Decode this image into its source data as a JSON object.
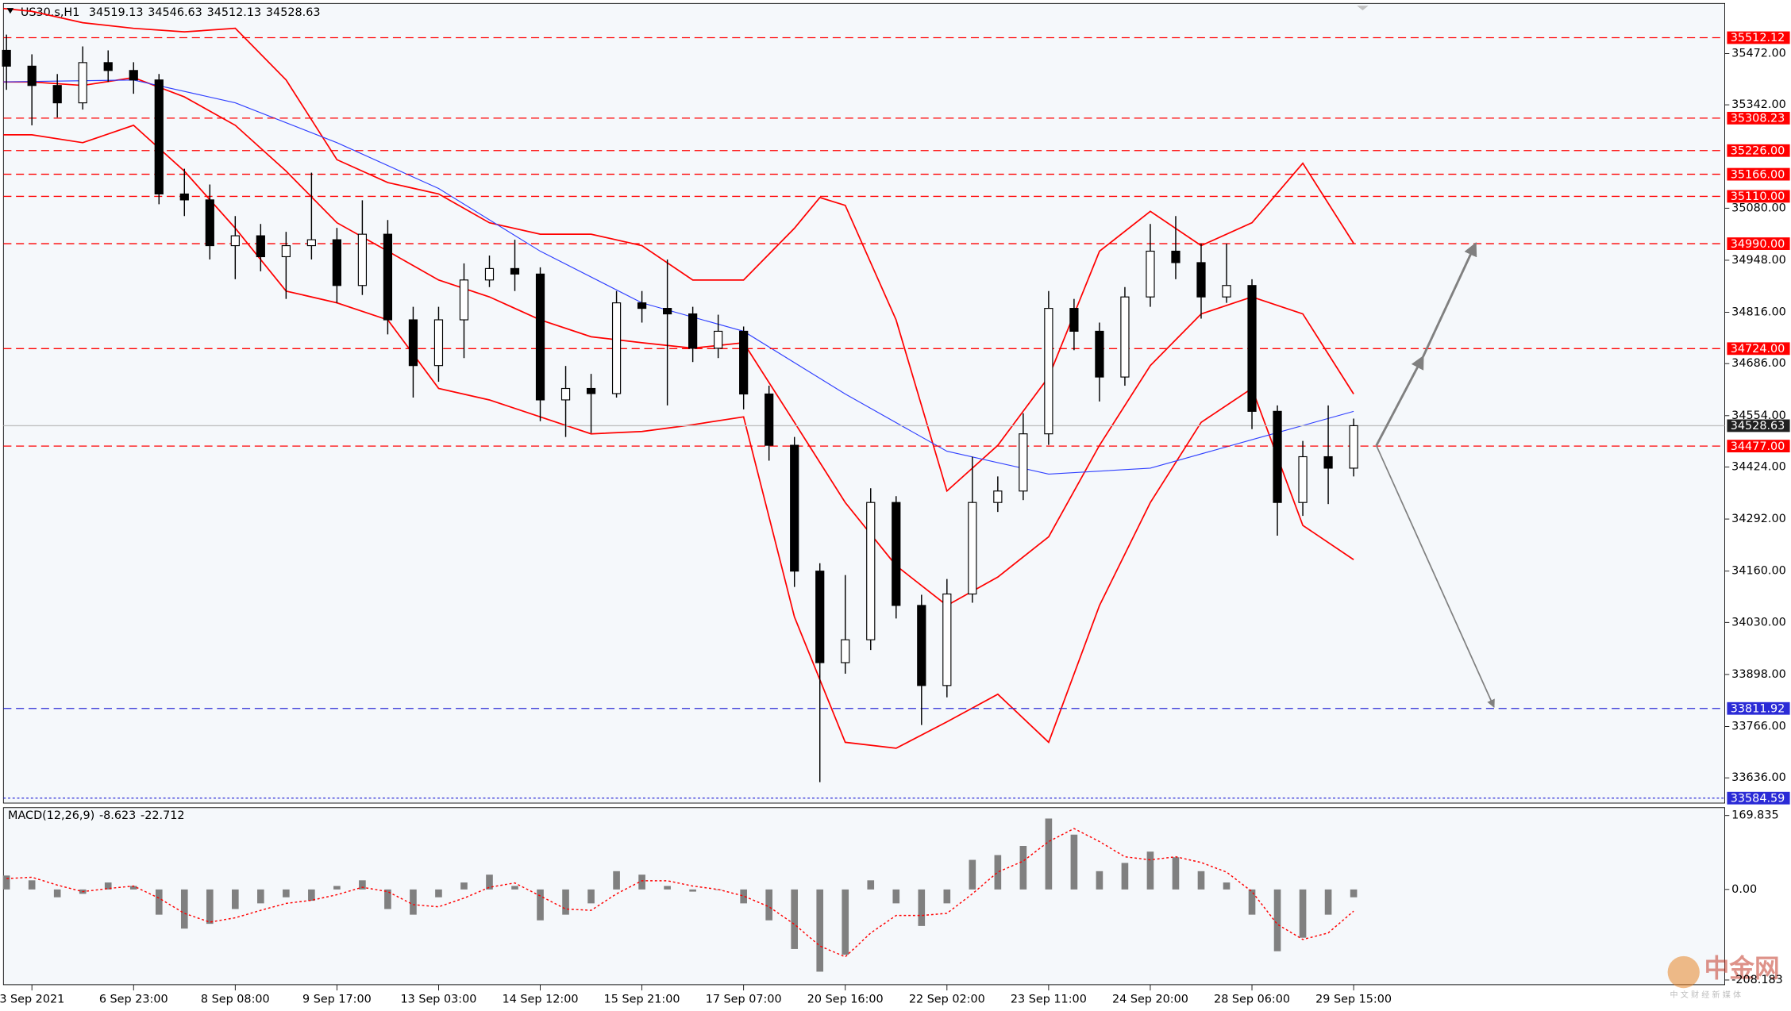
{
  "chart_data": [
    {
      "type": "candlestick",
      "title": "US30.s,H1",
      "quote": [
        34519.13,
        34546.63,
        34512.13,
        34528.63
      ],
      "xlim": [
        -0.28,
        16.65
      ],
      "xticks": [
        {
          "value": 0,
          "label": "3 Sep 2021"
        },
        {
          "value": 1,
          "label": "6 Sep 23:00"
        },
        {
          "value": 2,
          "label": "8 Sep 08:00"
        },
        {
          "value": 3,
          "label": "9 Sep 17:00"
        },
        {
          "value": 4,
          "label": "13 Sep 03:00"
        },
        {
          "value": 5,
          "label": "14 Sep 12:00"
        },
        {
          "value": 6,
          "label": "15 Sep 21:00"
        },
        {
          "value": 7,
          "label": "17 Sep 07:00"
        },
        {
          "value": 8,
          "label": "20 Sep 16:00"
        },
        {
          "value": 9,
          "label": "22 Sep 02:00"
        },
        {
          "value": 10,
          "label": "23 Sep 11:00"
        },
        {
          "value": 11,
          "label": "24 Sep 20:00"
        },
        {
          "value": 12,
          "label": "28 Sep 06:00"
        },
        {
          "value": 13,
          "label": "29 Sep 15:00"
        }
      ],
      "ylim": [
        33572,
        35599
      ],
      "yticks": [
        {
          "value": 35472,
          "label": "35472.00"
        },
        {
          "value": 35342,
          "label": "35342.00"
        },
        {
          "value": 35080,
          "label": "35080.00"
        },
        {
          "value": 34948,
          "label": "34948.00"
        },
        {
          "value": 34816,
          "label": "34816.00"
        },
        {
          "value": 34686,
          "label": "34686.00"
        },
        {
          "value": 34554,
          "label": "34554.00"
        },
        {
          "value": 34424,
          "label": "34424.00"
        },
        {
          "value": 34292,
          "label": "34292.00"
        },
        {
          "value": 34160,
          "label": "34160.00"
        },
        {
          "value": 34030,
          "label": "34030.00"
        },
        {
          "value": 33898,
          "label": "33898.00"
        },
        {
          "value": 33766,
          "label": "33766.00"
        },
        {
          "value": 33636,
          "label": "33636.00"
        }
      ],
      "grid": false,
      "x": [
        -0.25,
        0,
        0.25,
        0.5,
        0.75,
        1,
        1.25,
        1.5,
        1.75,
        2,
        2.25,
        2.5,
        2.75,
        3,
        3.25,
        3.5,
        3.75,
        4,
        4.25,
        4.5,
        4.75,
        5,
        5.25,
        5.5,
        5.75,
        6,
        6.25,
        6.5,
        6.75,
        7,
        7.25,
        7.5,
        7.75,
        8,
        8.25,
        8.5,
        8.75,
        9,
        9.25,
        9.5,
        9.75,
        10,
        10.25,
        10.5,
        10.75,
        11,
        11.25,
        11.5,
        11.75,
        12,
        12.25,
        12.5,
        12.75,
        13
      ],
      "open": [
        35480,
        35440,
        35391,
        35347,
        35449,
        35429,
        35405,
        35116,
        35101,
        34985,
        35010,
        34957,
        34985,
        35000,
        34884,
        35014,
        34797,
        34681,
        34797,
        34898,
        34927,
        34913,
        34594,
        34623,
        34610,
        34840,
        34826,
        34812,
        34725,
        34768,
        34609,
        34479,
        34160,
        33928,
        33986,
        34334,
        34073,
        33870,
        34102,
        34334,
        34363,
        34508,
        34826,
        34768,
        34652,
        34855,
        34971,
        34942,
        34855,
        34884,
        34565,
        34334,
        34450,
        34421
      ],
      "high": [
        35520,
        35470,
        35420,
        35490,
        35480,
        35450,
        35420,
        35180,
        35140,
        35060,
        35040,
        35020,
        35170,
        35030,
        35100,
        35050,
        34830,
        34830,
        34940,
        34960,
        35000,
        34930,
        34680,
        34660,
        34870,
        34870,
        34950,
        34830,
        34810,
        34780,
        34630,
        34500,
        34180,
        34150,
        34370,
        34350,
        34100,
        34140,
        34450,
        34400,
        34560,
        34870,
        34850,
        34790,
        34880,
        35040,
        35060,
        34990,
        34990,
        34900,
        34580,
        34490,
        34580,
        34546.63
      ],
      "low": [
        35380,
        35290,
        35310,
        35330,
        35400,
        35370,
        35090,
        35060,
        34950,
        34900,
        34920,
        34850,
        34950,
        34840,
        34860,
        34760,
        34600,
        34640,
        34700,
        34880,
        34870,
        34540,
        34500,
        34510,
        34600,
        34790,
        34580,
        34690,
        34700,
        34570,
        34440,
        34120,
        33625,
        33900,
        33960,
        34040,
        33770,
        33840,
        34080,
        34310,
        34340,
        34480,
        34720,
        34590,
        34630,
        34830,
        34900,
        34800,
        34840,
        34520,
        34250,
        34300,
        34330,
        34400
      ],
      "close": [
        35440,
        35391,
        35347,
        35449,
        35429,
        35405,
        35116,
        35101,
        34985,
        35010,
        34957,
        34985,
        35000,
        34884,
        35014,
        34797,
        34681,
        34797,
        34898,
        34927,
        34913,
        34594,
        34623,
        34610,
        34840,
        34826,
        34812,
        34725,
        34768,
        34609,
        34479,
        34160,
        33928,
        33986,
        34334,
        34073,
        33870,
        34102,
        34334,
        34363,
        34508,
        34826,
        34768,
        34652,
        34855,
        34971,
        34942,
        34855,
        34884,
        34565,
        34334,
        34450,
        34421,
        34528.63
      ],
      "up_color": "#ffffff",
      "down_color": "#000000",
      "overlays": [
        {
          "color": "#ff0000",
          "x": [
            -0.28,
            0,
            0.5,
            1,
            1.5,
            2,
            2.5,
            3,
            3.5,
            4,
            4.5,
            5,
            5.5,
            6,
            6.5,
            7,
            7.5,
            7.75,
            8,
            8.5,
            9,
            9.5,
            10,
            10.5,
            11,
            11.5,
            12,
            12.5,
            13
          ],
          "values": [
            35586,
            35579,
            35550,
            35536,
            35527,
            35536,
            35405,
            35203,
            35145,
            35116,
            35043,
            35014,
            35014,
            34985,
            34898,
            34898,
            35029,
            35107,
            35087,
            34797,
            34363,
            34479,
            34652,
            34971,
            35072,
            34985,
            35043,
            35194,
            34991
          ]
        },
        {
          "color": "#ff0000",
          "x": [
            -0.28,
            0,
            0.5,
            1,
            1.5,
            2,
            2.5,
            3,
            3.5,
            4,
            4.5,
            5,
            5.5,
            6,
            6.5,
            7,
            7.5,
            8,
            8.5,
            9,
            9.5,
            10,
            10.5,
            11,
            11.5,
            12,
            12.5,
            13
          ],
          "values": [
            35400,
            35400,
            35391,
            35411,
            35362,
            35290,
            35174,
            35043,
            34971,
            34898,
            34855,
            34797,
            34754,
            34739,
            34725,
            34739,
            34537,
            34334,
            34174,
            34073,
            34145,
            34247,
            34479,
            34681,
            34812,
            34855,
            34812,
            34609
          ]
        },
        {
          "color": "#ff0000",
          "x": [
            -0.28,
            0,
            0.5,
            1,
            1.5,
            2,
            2.5,
            3,
            3.5,
            4,
            4.5,
            5,
            5.5,
            6,
            6.5,
            7,
            7.5,
            8,
            8.5,
            9,
            9.5,
            10,
            10.5,
            11,
            11.5,
            12,
            12.5,
            13
          ],
          "values": [
            35266,
            35266,
            35246,
            35290,
            35174,
            35029,
            34870,
            34840,
            34797,
            34623,
            34594,
            34551,
            34508,
            34514,
            34531,
            34551,
            34044,
            33726,
            33711,
            33778,
            33848,
            33726,
            34073,
            34334,
            34537,
            34623,
            34276,
            34189
          ]
        },
        {
          "color": "#3040ff",
          "x": [
            -0.28,
            1,
            2,
            3,
            4,
            5,
            6,
            7,
            8,
            9,
            10,
            11,
            12,
            13
          ],
          "values": [
            35400,
            35405,
            35347,
            35246,
            35130,
            34971,
            34840,
            34768,
            34609,
            34464,
            34406,
            34421,
            34493,
            34565
          ]
        }
      ],
      "levels": [
        {
          "value": 35512.12,
          "color": "#ff0000",
          "style": "dashed"
        },
        {
          "value": 35308.23,
          "color": "#ff0000",
          "style": "dashed"
        },
        {
          "value": 35226,
          "label": "35226.00",
          "color": "#ff0000",
          "style": "dashed"
        },
        {
          "value": 35166,
          "label": "35166.00",
          "color": "#ff0000",
          "style": "dashed"
        },
        {
          "value": 35110,
          "label": "35110.00",
          "color": "#ff0000",
          "style": "dashed"
        },
        {
          "value": 34990,
          "label": "34990.00",
          "color": "#ff0000",
          "style": "dashed"
        },
        {
          "value": 34724,
          "label": "34724.00",
          "color": "#ff0000",
          "style": "dashed"
        },
        {
          "value": 34528.63,
          "color": "#c0c0c0",
          "label_color": "#202020",
          "style": "solid"
        },
        {
          "value": 34477,
          "label": "34477.00",
          "color": "#ff0000",
          "style": "dashed"
        },
        {
          "value": 33811.92,
          "color": "#2b2bd6",
          "style": "dashed"
        },
        {
          "value": 33584.59,
          "color": "#2b2bd6",
          "style": "dotted"
        }
      ]
    },
    {
      "type": "macd",
      "title": "MACD(12,26,9)",
      "readings": [
        -8.623,
        -22.712
      ],
      "xlim": [
        -0.28,
        16.65
      ],
      "ylim": [
        -219,
        188
      ],
      "yticks": [
        169.835,
        {
          "value": 0,
          "label": "0.00"
        },
        -208.183
      ],
      "x": [
        -0.25,
        0,
        0.25,
        0.5,
        0.75,
        1,
        1.25,
        1.5,
        1.75,
        2,
        2.25,
        2.5,
        2.75,
        3,
        3.25,
        3.5,
        3.75,
        4,
        4.25,
        4.5,
        4.75,
        5,
        5.25,
        5.5,
        5.75,
        6,
        6.25,
        6.5,
        6.75,
        7,
        7.25,
        7.5,
        7.75,
        8,
        8.25,
        8.5,
        8.75,
        9,
        9.25,
        9.5,
        9.75,
        10,
        10.25,
        10.5,
        10.75,
        11,
        11.25,
        11.5,
        11.75,
        12,
        12.25,
        12.5,
        12.75,
        13
      ],
      "histogram": {
        "color": "#808080",
        "values": [
          32,
          21,
          -18,
          -10,
          16,
          8,
          -58,
          -90,
          -79,
          -45,
          -32,
          -18,
          -26,
          8,
          21,
          -45,
          -58,
          -18,
          16,
          34,
          8,
          -71,
          -58,
          -32,
          42,
          34,
          8,
          -5,
          0,
          -32,
          -71,
          -137,
          -189,
          -150,
          21,
          -32,
          -84,
          -32,
          68,
          79,
          100,
          163,
          126,
          42,
          61,
          87,
          74,
          42,
          16,
          -58,
          -142,
          -111,
          -58,
          -18
        ]
      },
      "signal": {
        "color": "#ff0000",
        "values": [
          25,
          28,
          10,
          -5,
          2,
          8,
          -20,
          -55,
          -75,
          -65,
          -48,
          -32,
          -25,
          -12,
          5,
          -5,
          -35,
          -40,
          -20,
          5,
          15,
          -15,
          -45,
          -48,
          -10,
          20,
          20,
          8,
          0,
          -15,
          -40,
          -80,
          -130,
          -155,
          -100,
          -60,
          -60,
          -55,
          -10,
          40,
          65,
          110,
          140,
          110,
          75,
          68,
          75,
          62,
          40,
          -5,
          -80,
          -115,
          -100,
          -50
        ]
      }
    }
  ],
  "watermark": {
    "logo": "中金网",
    "tagline": "中 文 财 经 新 媒 体"
  }
}
